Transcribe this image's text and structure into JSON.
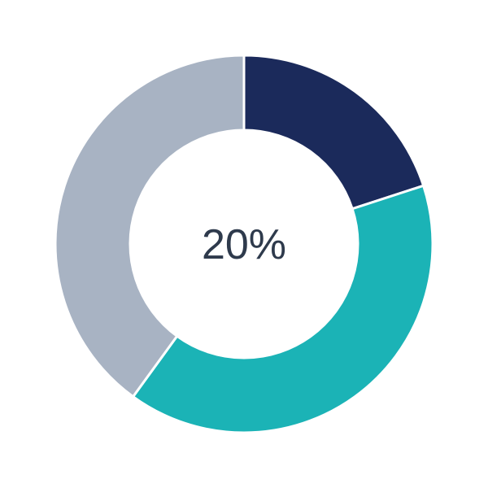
{
  "chart_data": {
    "type": "pie",
    "variant": "donut",
    "values": [
      20,
      40,
      40
    ],
    "colors": [
      "#1b2a5b",
      "#1bb3b6",
      "#a8b3c3"
    ],
    "center_label": "20%",
    "start_angle": "top",
    "direction": "clockwise",
    "legend": "none"
  }
}
